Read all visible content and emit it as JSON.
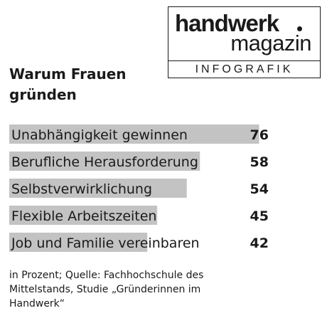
{
  "logo": {
    "name": "handwerk",
    "sub": "magazin",
    "tag": "INFOGRAFIK"
  },
  "title": "Warum Frauen gründen",
  "footnote": "in Prozent; Quelle: Fachhochschule des Mittelstands, Studie „Gründerinnen im Handwerk“",
  "chart_data": {
    "type": "bar",
    "orientation": "horizontal",
    "title": "Warum Frauen gründen",
    "unit": "in Prozent",
    "categories": [
      "Unabhängigkeit gewinnen",
      "Berufliche Herausforderung",
      "Selbstverwirklichung",
      "Flexible Arbeitszeiten",
      "Job und Familie vereinbaren"
    ],
    "values": [
      76,
      58,
      54,
      45,
      42
    ],
    "xlim": [
      0,
      80
    ],
    "grid": false,
    "legend": "none",
    "bar_color": "#c3c3c3"
  }
}
